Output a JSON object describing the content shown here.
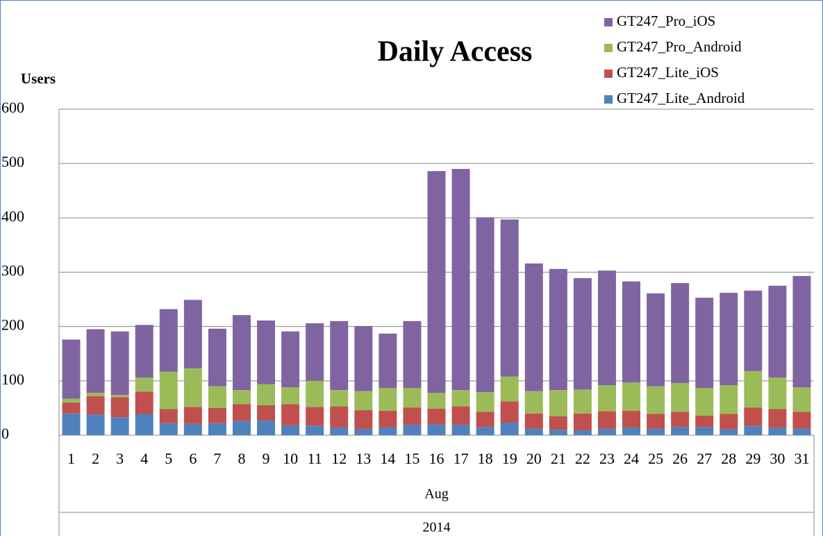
{
  "chart_data": {
    "type": "stacked_bar",
    "title": "Daily Access",
    "y_label": "Users",
    "categories": [
      "1",
      "2",
      "3",
      "4",
      "5",
      "6",
      "7",
      "8",
      "9",
      "10",
      "11",
      "12",
      "13",
      "14",
      "15",
      "16",
      "17",
      "18",
      "19",
      "20",
      "21",
      "22",
      "23",
      "24",
      "25",
      "26",
      "27",
      "28",
      "29",
      "30",
      "31"
    ],
    "category_group": "Aug",
    "category_year": "2014",
    "series": [
      {
        "name": "GT247_Lite_Android",
        "color": "#4f81bd",
        "values": [
          40,
          38,
          33,
          39,
          22,
          21,
          22,
          26,
          27,
          18,
          17,
          14,
          11,
          14,
          19,
          20,
          19,
          15,
          23,
          12,
          10,
          9,
          12,
          14,
          12,
          15,
          15,
          11,
          17,
          14,
          12
        ]
      },
      {
        "name": "GT247_Lite_iOS",
        "color": "#c0504d",
        "values": [
          20,
          34,
          37,
          41,
          26,
          31,
          28,
          31,
          28,
          39,
          35,
          39,
          35,
          31,
          32,
          29,
          34,
          28,
          39,
          28,
          25,
          31,
          32,
          31,
          27,
          28,
          21,
          28,
          34,
          34,
          31
        ]
      },
      {
        "name": "GT247_Pro_Android",
        "color": "#9bbb59",
        "values": [
          7,
          6,
          4,
          26,
          69,
          71,
          40,
          26,
          39,
          31,
          48,
          30,
          35,
          42,
          36,
          29,
          30,
          36,
          46,
          41,
          48,
          44,
          48,
          52,
          51,
          53,
          51,
          53,
          67,
          58,
          45
        ]
      },
      {
        "name": "GT247_Pro_iOS",
        "color": "#8064a2",
        "values": [
          109,
          117,
          117,
          97,
          115,
          126,
          106,
          138,
          117,
          103,
          106,
          127,
          120,
          100,
          123,
          408,
          407,
          322,
          289,
          235,
          223,
          205,
          211,
          186,
          171,
          184,
          166,
          170,
          148,
          169,
          205
        ]
      }
    ],
    "ylim": [
      0,
      600
    ],
    "yticks": [
      0,
      100,
      200,
      300,
      400,
      500,
      600
    ],
    "grid": true,
    "legend": "top-right"
  }
}
